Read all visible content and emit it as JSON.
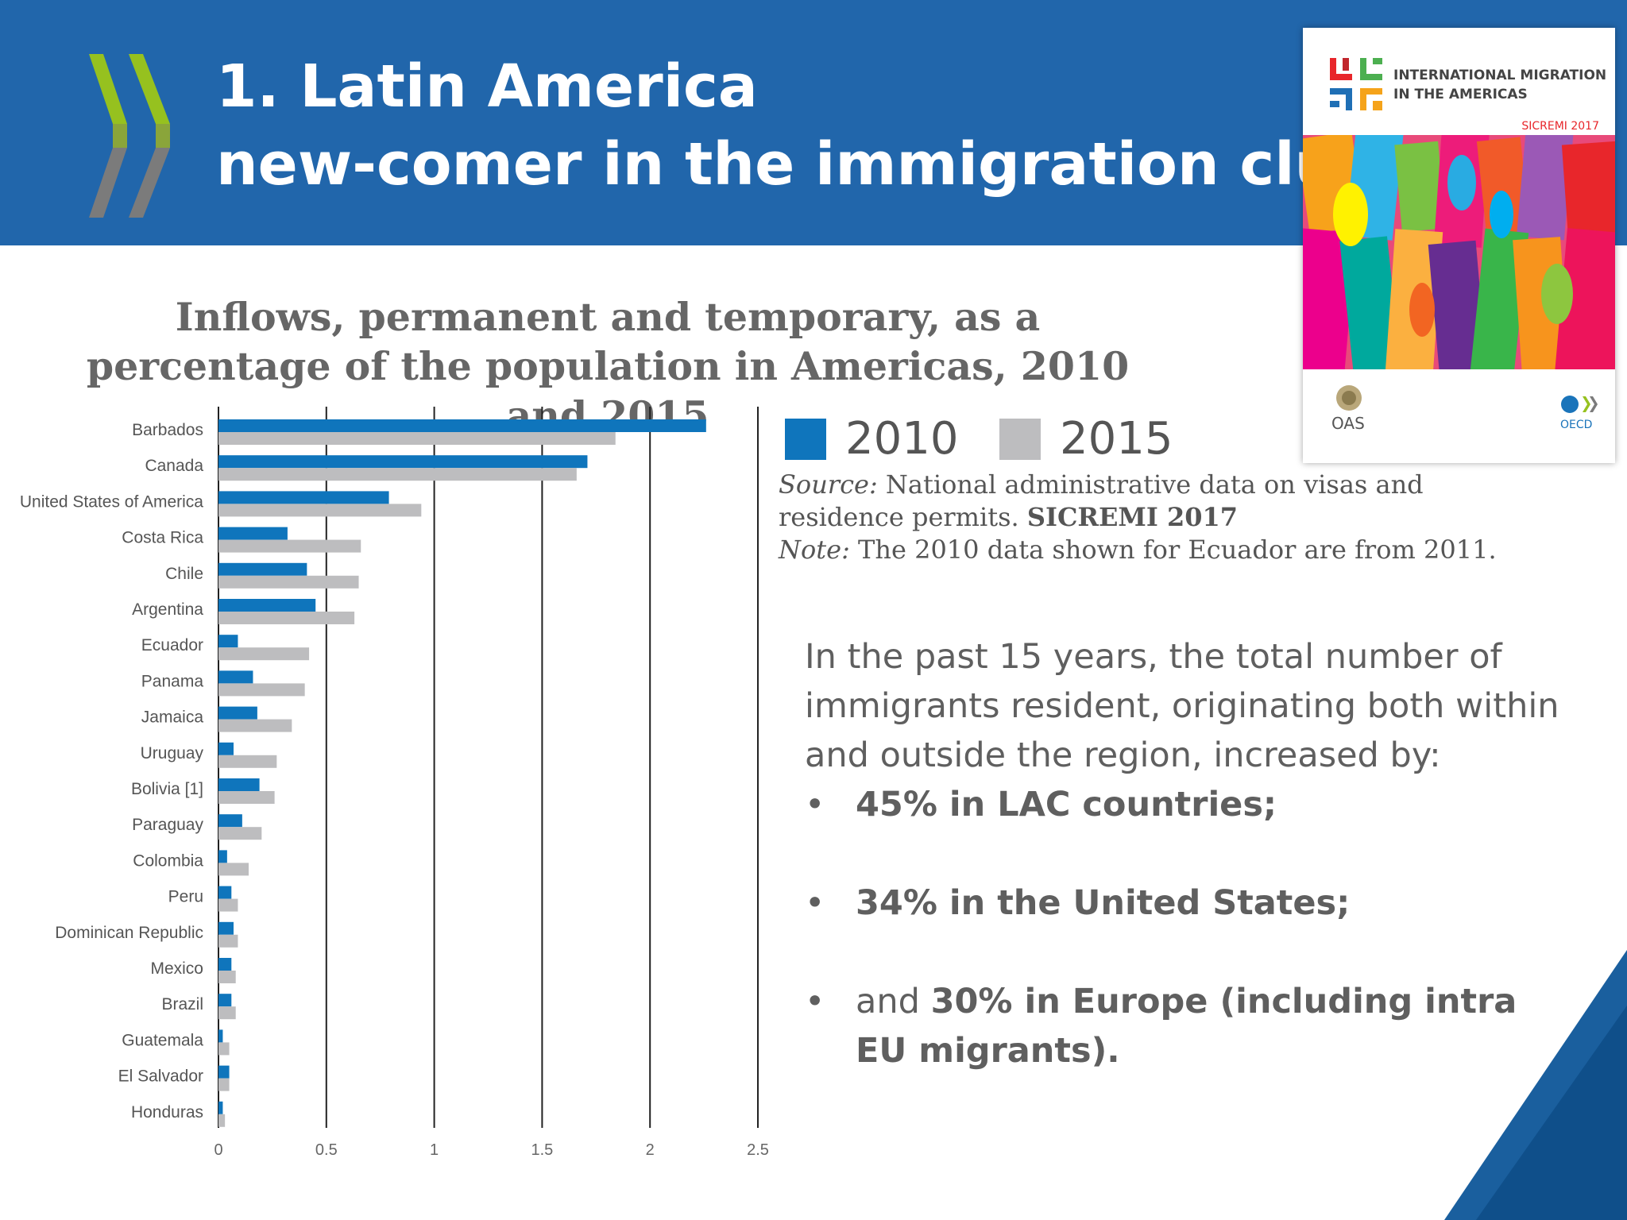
{
  "header": {
    "title_line1": "1. Latin America",
    "title_line2": "new-comer in the immigration club",
    "background_color": "#2166ab"
  },
  "cover": {
    "title_line1": "INTERNATIONAL MIGRATION",
    "title_line2": "IN THE AMERICAS",
    "edition": "SICREMI 2017",
    "logo_left": "OAS",
    "logo_right": "OECD"
  },
  "legend": {
    "item1_label": "2010",
    "item2_label": "2015"
  },
  "source": {
    "source_label": "Source:",
    "source_text": "National administrative data on visas and residence permits.",
    "source_bold": "SICREMI 2017",
    "note_label": "Note:",
    "note_text": "The 2010 data shown for Ecuador are from 2011."
  },
  "summary": {
    "intro": "In the past 15 years, the total number of immigrants resident, originating both within and outside the region, increased by:",
    "bullet_char": "•",
    "bullet1": "45% in LAC countries;",
    "bullet2": "34% in the United States;",
    "bullet3_prefix": "and",
    "bullet3_bold": "30% in Europe (including intra EU migrants)."
  },
  "chart_data": {
    "type": "bar",
    "orientation": "horizontal",
    "title": "Inflows, permanent and temporary, as a percentage of the population in Americas, 2010 and 2015",
    "categories": [
      "Barbados",
      "Canada",
      "United States of America",
      "Costa Rica",
      "Chile",
      "Argentina",
      "Ecuador",
      "Panama",
      "Jamaica",
      "Uruguay",
      "Bolivia [1]",
      "Paraguay",
      "Colombia",
      "Peru",
      "Dominican Republic",
      "Mexico",
      "Brazil",
      "Guatemala",
      "El Salvador",
      "Honduras"
    ],
    "series": [
      {
        "name": "2010",
        "color": "#0f75bc",
        "values": [
          2.26,
          1.71,
          0.79,
          0.32,
          0.41,
          0.45,
          0.09,
          0.16,
          0.18,
          0.07,
          0.19,
          0.11,
          0.04,
          0.06,
          0.07,
          0.06,
          0.06,
          0.02,
          0.05,
          0.02
        ]
      },
      {
        "name": "2015",
        "color": "#bdbdbf",
        "values": [
          1.84,
          1.66,
          0.94,
          0.66,
          0.65,
          0.63,
          0.42,
          0.4,
          0.34,
          0.27,
          0.26,
          0.2,
          0.14,
          0.09,
          0.09,
          0.08,
          0.08,
          0.05,
          0.05,
          0.03
        ]
      }
    ],
    "xlim": [
      0,
      2.5
    ],
    "xticks": [
      "0",
      "0.5",
      "1",
      "1.5",
      "2",
      "2.5"
    ],
    "xtick_values": [
      0,
      0.5,
      1,
      1.5,
      2,
      2.5
    ],
    "grid": "vertical lines",
    "legend_position": "top-right"
  }
}
